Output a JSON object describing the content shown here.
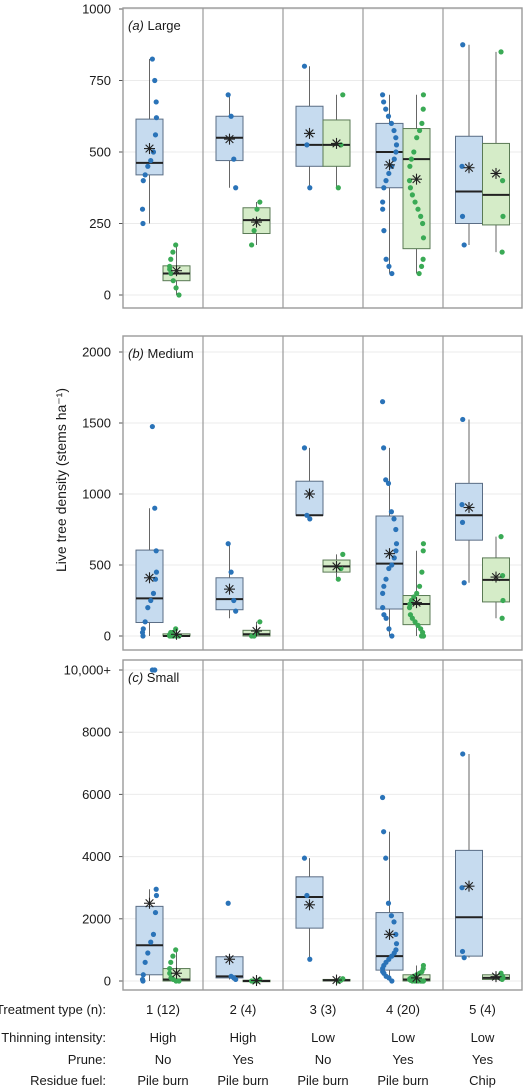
{
  "ylabel": "Live tree density (stems ha⁻¹)",
  "colors": {
    "before_fill": "#c6dbef",
    "before_edge": "#5a6d85",
    "before_dot": "#2a73b8",
    "after_fill": "#d5ecc8",
    "after_edge": "#5a7a55",
    "after_dot": "#3aaa55",
    "panel_border": "#9a9a9a",
    "grid": "#ebebeb",
    "median": "#222222",
    "mean_marker": "#222222"
  },
  "groups": [
    {
      "treatment": "1 (12)",
      "thinning": "High",
      "prune": "No",
      "residue": "Pile burn"
    },
    {
      "treatment": "2 (4)",
      "thinning": "High",
      "prune": "Yes",
      "residue": "Pile burn"
    },
    {
      "treatment": "3 (3)",
      "thinning": "Low",
      "prune": "No",
      "residue": "Pile burn"
    },
    {
      "treatment": "4 (20)",
      "thinning": "Low",
      "prune": "Yes",
      "residue": "Pile burn"
    },
    {
      "treatment": "5 (4)",
      "thinning": "Low",
      "prune": "Yes",
      "residue": "Chip"
    }
  ],
  "row_labels": {
    "treatment": "Treatment type (n):",
    "thinning": "Thinning intensity:",
    "prune": "Prune:",
    "residue": "Residue fuel:"
  },
  "chart_data": [
    {
      "type": "box",
      "panel": "(a)",
      "label": "Large",
      "ylim": [
        0,
        1000
      ],
      "yticks": [
        0,
        250,
        500,
        750,
        1000
      ],
      "ytick_labels": [
        "0",
        "250",
        "500",
        "750",
        "1000"
      ],
      "grid": true,
      "boxes": [
        {
          "group": 0,
          "series": 0,
          "q1": 420,
          "median": 462,
          "q3": 615,
          "whisker_low": 250,
          "whisker_high": 825,
          "mean": 512,
          "points": [
            825,
            750,
            675,
            620,
            560,
            500,
            470,
            450,
            420,
            400,
            300,
            250
          ]
        },
        {
          "group": 0,
          "series": 1,
          "q1": 50,
          "median": 75,
          "q3": 102,
          "whisker_low": 0,
          "whisker_high": 175,
          "mean": 85,
          "points": [
            175,
            150,
            125,
            100,
            90,
            75,
            50,
            25,
            0
          ]
        },
        {
          "group": 1,
          "series": 0,
          "q1": 470,
          "median": 550,
          "q3": 625,
          "whisker_low": 375,
          "whisker_high": 700,
          "mean": 545,
          "points": [
            700,
            625,
            475,
            375
          ]
        },
        {
          "group": 1,
          "series": 1,
          "q1": 215,
          "median": 262,
          "q3": 305,
          "whisker_low": 175,
          "whisker_high": 325,
          "mean": 255,
          "points": [
            325,
            300,
            225,
            175
          ]
        },
        {
          "group": 2,
          "series": 0,
          "q1": 450,
          "median": 525,
          "q3": 660,
          "whisker_low": 375,
          "whisker_high": 800,
          "mean": 565,
          "points": [
            800,
            525,
            375
          ]
        },
        {
          "group": 2,
          "series": 1,
          "q1": 450,
          "median": 525,
          "q3": 612,
          "whisker_low": 375,
          "whisker_high": 700,
          "mean": 530,
          "points": [
            700,
            525,
            375
          ]
        },
        {
          "group": 3,
          "series": 0,
          "q1": 375,
          "median": 500,
          "q3": 600,
          "whisker_low": 75,
          "whisker_high": 700,
          "mean": 455,
          "points": [
            700,
            675,
            650,
            625,
            600,
            575,
            550,
            525,
            500,
            475,
            450,
            425,
            400,
            375,
            325,
            300,
            225,
            125,
            100,
            75
          ]
        },
        {
          "group": 3,
          "series": 1,
          "q1": 162,
          "median": 475,
          "q3": 582,
          "whisker_low": 75,
          "whisker_high": 700,
          "mean": 405,
          "points": [
            700,
            650,
            600,
            575,
            550,
            500,
            475,
            450,
            400,
            375,
            350,
            325,
            300,
            275,
            250,
            200,
            125,
            100,
            75
          ]
        },
        {
          "group": 4,
          "series": 0,
          "q1": 250,
          "median": 362,
          "q3": 555,
          "whisker_low": 175,
          "whisker_high": 875,
          "mean": 445,
          "points": [
            875,
            450,
            275,
            175
          ]
        },
        {
          "group": 4,
          "series": 1,
          "q1": 245,
          "median": 350,
          "q3": 530,
          "whisker_low": 150,
          "whisker_high": 850,
          "mean": 425,
          "points": [
            850,
            400,
            275,
            150
          ]
        }
      ]
    },
    {
      "type": "box",
      "panel": "(b)",
      "label": "Medium",
      "ylim": [
        0,
        2000
      ],
      "yticks": [
        0,
        500,
        1000,
        1500,
        2000
      ],
      "ytick_labels": [
        "0",
        "500",
        "1000",
        "1500",
        "2000"
      ],
      "grid": true,
      "boxes": [
        {
          "group": 0,
          "series": 0,
          "q1": 95,
          "median": 265,
          "q3": 605,
          "whisker_low": 0,
          "whisker_high": 900,
          "mean": 410,
          "points": [
            1475,
            900,
            600,
            450,
            400,
            300,
            250,
            200,
            100,
            50,
            25,
            0
          ]
        },
        {
          "group": 0,
          "series": 1,
          "q1": 0,
          "median": 0,
          "q3": 15,
          "whisker_low": 0,
          "whisker_high": 30,
          "mean": 12,
          "points": [
            50,
            25,
            25,
            10,
            0,
            0,
            0,
            0,
            0
          ]
        },
        {
          "group": 1,
          "series": 0,
          "q1": 185,
          "median": 260,
          "q3": 410,
          "whisker_low": 125,
          "whisker_high": 650,
          "mean": 330,
          "points": [
            650,
            450,
            250,
            175
          ]
        },
        {
          "group": 1,
          "series": 1,
          "q1": 0,
          "median": 12,
          "q3": 40,
          "whisker_low": 0,
          "whisker_high": 100,
          "mean": 35,
          "points": [
            100,
            25,
            0,
            0
          ]
        },
        {
          "group": 2,
          "series": 0,
          "q1": 850,
          "median": 850,
          "q3": 1090,
          "whisker_low": 825,
          "whisker_high": 1325,
          "mean": 1000,
          "points": [
            1325,
            850,
            825
          ]
        },
        {
          "group": 2,
          "series": 1,
          "q1": 450,
          "median": 490,
          "q3": 535,
          "whisker_low": 400,
          "whisker_high": 575,
          "mean": 490,
          "points": [
            575,
            475,
            400
          ]
        },
        {
          "group": 3,
          "series": 0,
          "q1": 190,
          "median": 510,
          "q3": 845,
          "whisker_low": 0,
          "whisker_high": 1325,
          "mean": 580,
          "points": [
            1650,
            1325,
            1100,
            1075,
            875,
            825,
            750,
            650,
            600,
            550,
            500,
            475,
            400,
            350,
            300,
            200,
            150,
            125,
            50,
            0
          ]
        },
        {
          "group": 3,
          "series": 1,
          "q1": 80,
          "median": 225,
          "q3": 285,
          "whisker_low": 0,
          "whisker_high": 600,
          "mean": 235,
          "points": [
            650,
            600,
            450,
            350,
            300,
            275,
            250,
            225,
            200,
            150,
            125,
            100,
            75,
            50,
            25,
            0,
            0,
            0
          ]
        },
        {
          "group": 4,
          "series": 0,
          "q1": 675,
          "median": 850,
          "q3": 1075,
          "whisker_low": 375,
          "whisker_high": 1525,
          "mean": 905,
          "points": [
            1525,
            925,
            800,
            375
          ]
        },
        {
          "group": 4,
          "series": 1,
          "q1": 240,
          "median": 395,
          "q3": 550,
          "whisker_low": 125,
          "whisker_h2": null,
          "whisker_high": 700,
          "mean": 415,
          "points": [
            700,
            425,
            250,
            125
          ]
        }
      ]
    },
    {
      "type": "box",
      "panel": "(c)",
      "label": "Small",
      "ylim": [
        0,
        10000
      ],
      "yticks": [
        0,
        2000,
        4000,
        6000,
        8000,
        10000
      ],
      "ytick_labels": [
        "0",
        "2000",
        "4000",
        "6000",
        "8000",
        "10,000+"
      ],
      "grid": true,
      "boxes": [
        {
          "group": 0,
          "series": 0,
          "q1": 200,
          "median": 1150,
          "q3": 2400,
          "whisker_low": 0,
          "whisker_high": 2950,
          "mean": 2500,
          "points": [
            10000,
            10000,
            2950,
            2750,
            2200,
            1500,
            1250,
            900,
            600,
            200,
            50,
            0
          ]
        },
        {
          "group": 0,
          "series": 1,
          "q1": 0,
          "median": 50,
          "q3": 400,
          "whisker_low": 0,
          "whisker_high": 1000,
          "mean": 250,
          "points": [
            1000,
            800,
            600,
            400,
            250,
            100,
            50,
            0,
            0
          ]
        },
        {
          "group": 1,
          "series": 0,
          "q1": 100,
          "median": 150,
          "q3": 780,
          "whisker_low": 50,
          "whisker_high": 780,
          "mean": 700,
          "points": [
            2500,
            150,
            100,
            50
          ]
        },
        {
          "group": 1,
          "series": 1,
          "q1": 0,
          "median": 0,
          "q3": 25,
          "whisker_low": 0,
          "whisker_high": 50,
          "mean": 15,
          "points": [
            50,
            0,
            0,
            0
          ]
        },
        {
          "group": 2,
          "series": 0,
          "q1": 1700,
          "median": 2700,
          "q3": 3350,
          "whisker_low": 700,
          "whisker_high": 3950,
          "mean": 2450,
          "points": [
            3950,
            2750,
            700
          ]
        },
        {
          "group": 2,
          "series": 1,
          "q1": 0,
          "median": 25,
          "q3": 50,
          "whisker_low": 0,
          "whisker_high": 75,
          "mean": 30,
          "points": [
            75,
            25,
            0
          ]
        },
        {
          "group": 3,
          "series": 0,
          "q1": 350,
          "median": 800,
          "q3": 2200,
          "whisker_low": 0,
          "whisker_high": 4800,
          "mean": 1500,
          "points": [
            5900,
            4800,
            3950,
            2500,
            2100,
            1900,
            1500,
            1200,
            1000,
            900,
            800,
            700,
            600,
            500,
            400,
            300,
            250,
            150,
            100,
            0
          ]
        },
        {
          "group": 3,
          "series": 1,
          "q1": 0,
          "median": 50,
          "q3": 200,
          "whisker_low": 0,
          "whisker_high": 500,
          "mean": 100,
          "points": [
            500,
            400,
            300,
            250,
            200,
            150,
            100,
            75,
            50,
            25,
            0,
            0,
            0,
            0,
            0,
            0,
            0,
            0
          ]
        },
        {
          "group": 4,
          "series": 0,
          "q1": 800,
          "median": 2050,
          "q3": 4200,
          "whisker_low": 750,
          "whisker_high": 7300,
          "mean": 3050,
          "points": [
            7300,
            3000,
            950,
            750
          ]
        },
        {
          "group": 4,
          "series": 1,
          "q1": 50,
          "median": 100,
          "q3": 200,
          "whisker_low": 0,
          "whisker_high": 250,
          "mean": 140,
          "points": [
            250,
            150,
            100,
            50
          ]
        }
      ]
    }
  ]
}
